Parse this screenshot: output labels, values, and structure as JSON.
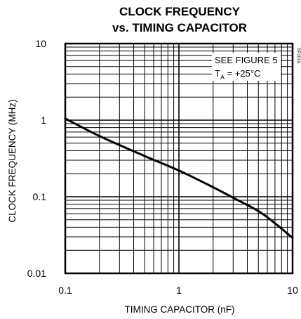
{
  "chart_data": {
    "type": "line",
    "title": [
      "CLOCK FREQUENCY",
      "vs. TIMING CAPACITOR"
    ],
    "xlabel": "TIMING CAPACITOR (nF)",
    "ylabel": "CLOCK FREQUENCY (MHz)",
    "x_scale": "log",
    "y_scale": "log",
    "xlim": [
      0.1,
      10
    ],
    "ylim": [
      0.01,
      10
    ],
    "x_ticks": [
      0.1,
      1,
      10
    ],
    "x_tick_labels": [
      "0.1",
      "1",
      "10"
    ],
    "y_ticks": [
      10,
      1,
      0.1,
      0.01
    ],
    "y_tick_labels": [
      "10",
      "1",
      "0.1",
      "0.01"
    ],
    "grid": true,
    "series": [
      {
        "x": [
          0.1,
          0.2,
          0.5,
          1,
          2,
          3,
          5,
          7,
          10
        ],
        "y": [
          1.05,
          0.62,
          0.34,
          0.22,
          0.133,
          0.097,
          0.065,
          0.045,
          0.029
        ]
      }
    ],
    "annotations": [
      {
        "text": "SEE FIGURE 5"
      },
      {
        "main": "T",
        "sub": "A",
        "rest": " = +25°C"
      }
    ],
    "code": "GP101A"
  }
}
